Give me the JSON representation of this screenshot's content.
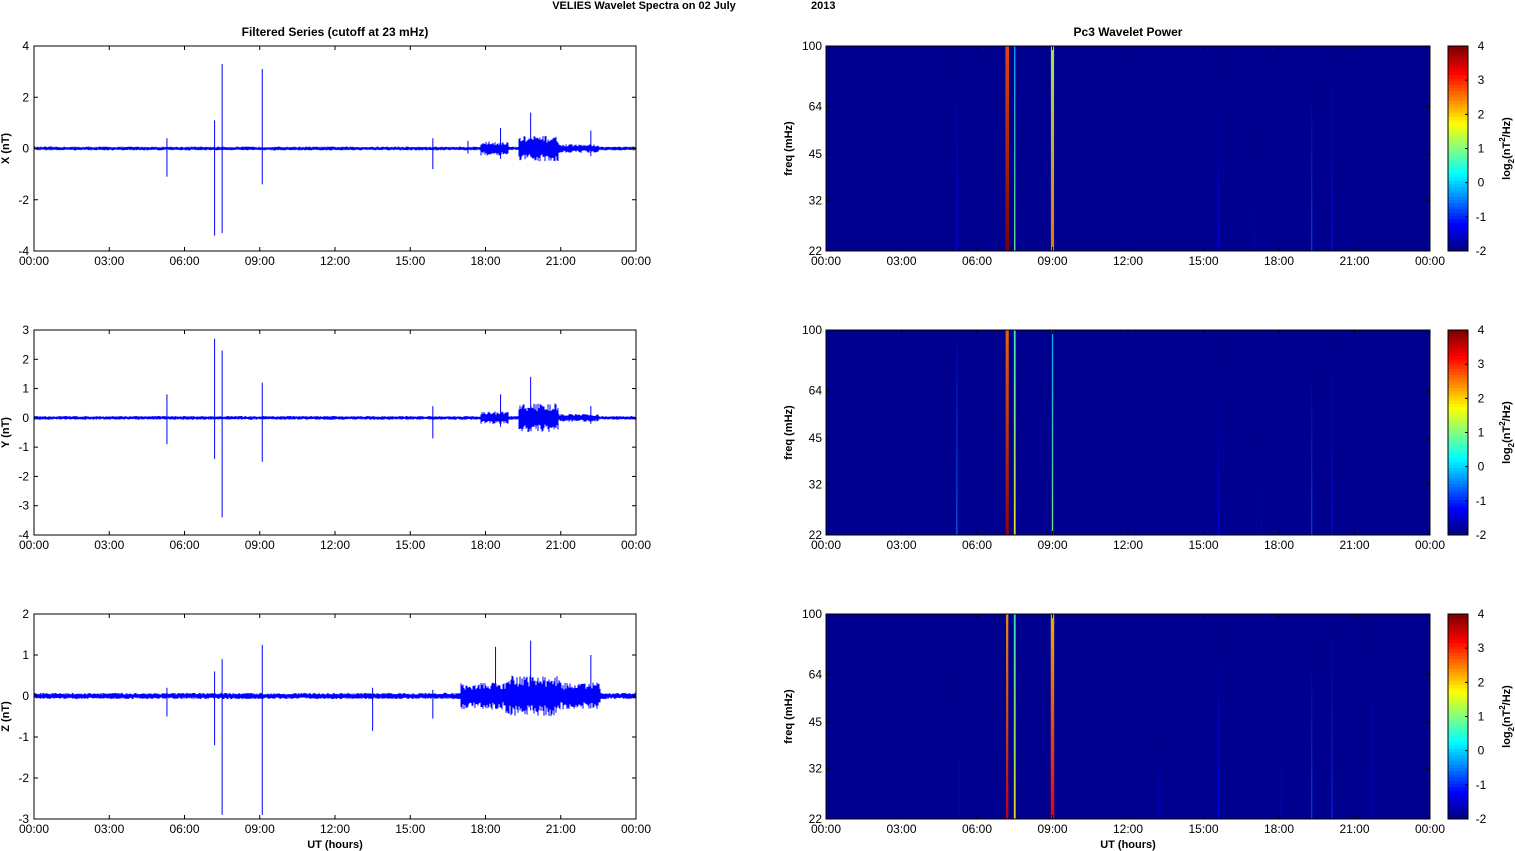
{
  "figure": {
    "suptitle": "VELIES Wavelet Spectra on 02 July",
    "suptitle_year": "2013"
  },
  "colors": {
    "trace": "#0000ff",
    "spectrum_background": "#00008f",
    "axis": "#000000"
  },
  "chart_data": [
    {
      "type": "line",
      "title": "Filtered Series (cutoff at 23 mHz)",
      "ylabel": "X (nT)",
      "xlabel": "",
      "xlim": [
        0,
        24
      ],
      "ylim": [
        -4,
        4
      ],
      "xticks": [
        "00:00",
        "03:00",
        "06:00",
        "09:00",
        "12:00",
        "15:00",
        "18:00",
        "21:00",
        "00:00"
      ],
      "yticks": [
        "4",
        "2",
        "0",
        "-2",
        "-4"
      ],
      "baseline_noise": 0.07,
      "active_intervals": [
        [
          17.8,
          18.9,
          0.25
        ],
        [
          19.3,
          20.9,
          0.45
        ],
        [
          20.9,
          22.5,
          0.15
        ]
      ],
      "spikes": [
        [
          5.3,
          0.4,
          -1.1
        ],
        [
          7.2,
          1.1,
          -3.4
        ],
        [
          7.5,
          3.3,
          -3.3
        ],
        [
          9.1,
          3.1,
          -1.4
        ],
        [
          15.9,
          0.4,
          -0.8
        ],
        [
          17.3,
          0.3,
          -0.2
        ],
        [
          18.6,
          0.8,
          -0.4
        ],
        [
          19.8,
          1.4,
          -0.3
        ],
        [
          22.2,
          0.7,
          -0.3
        ]
      ]
    },
    {
      "type": "line",
      "title": "",
      "ylabel": "Y (nT)",
      "xlabel": "",
      "xlim": [
        0,
        24
      ],
      "ylim": [
        -4,
        3
      ],
      "xticks": [
        "00:00",
        "03:00",
        "06:00",
        "09:00",
        "12:00",
        "15:00",
        "18:00",
        "21:00",
        "00:00"
      ],
      "yticks": [
        "3",
        "2",
        "1",
        "0",
        "-1",
        "-2",
        "-3",
        "-4"
      ],
      "baseline_noise": 0.06,
      "active_intervals": [
        [
          17.8,
          18.9,
          0.2
        ],
        [
          19.3,
          20.9,
          0.45
        ],
        [
          20.9,
          22.5,
          0.12
        ]
      ],
      "spikes": [
        [
          5.3,
          0.8,
          -0.9
        ],
        [
          7.2,
          2.7,
          -1.4
        ],
        [
          7.5,
          2.3,
          -3.4
        ],
        [
          9.1,
          1.2,
          -1.5
        ],
        [
          15.9,
          0.4,
          -0.7
        ],
        [
          18.6,
          0.8,
          -0.3
        ],
        [
          19.8,
          1.4,
          -0.3
        ],
        [
          22.2,
          0.4,
          -0.2
        ]
      ]
    },
    {
      "type": "line",
      "title": "",
      "ylabel": "Z (nT)",
      "xlabel": "UT (hours)",
      "xlim": [
        0,
        24
      ],
      "ylim": [
        -3,
        2
      ],
      "xticks": [
        "00:00",
        "03:00",
        "06:00",
        "09:00",
        "12:00",
        "15:00",
        "18:00",
        "21:00",
        "00:00"
      ],
      "yticks": [
        "2",
        "1",
        "0",
        "-1",
        "-2",
        "-3"
      ],
      "baseline_noise": 0.07,
      "active_intervals": [
        [
          17.0,
          18.8,
          0.3
        ],
        [
          18.8,
          21.0,
          0.45
        ],
        [
          21.0,
          22.6,
          0.3
        ]
      ],
      "spikes": [
        [
          5.3,
          0.2,
          -0.5
        ],
        [
          7.2,
          0.6,
          -1.2
        ],
        [
          7.5,
          0.9,
          -2.9
        ],
        [
          9.1,
          1.25,
          -2.9
        ],
        [
          13.5,
          0.2,
          -0.85
        ],
        [
          15.9,
          0.15,
          -0.55
        ],
        [
          18.4,
          1.2,
          -0.3
        ],
        [
          19.8,
          1.35,
          -0.35
        ],
        [
          22.2,
          1.0,
          -0.3
        ]
      ]
    },
    {
      "type": "heatmap",
      "title": "Pc3 Wavelet Power",
      "ylabel": "freq (mHz)",
      "xlabel": "",
      "xlim": [
        0,
        24
      ],
      "ylim": [
        22,
        100
      ],
      "scale_y": "log",
      "xticks": [
        "00:00",
        "03:00",
        "06:00",
        "09:00",
        "12:00",
        "15:00",
        "18:00",
        "21:00",
        "00:00"
      ],
      "yticks": [
        100,
        64,
        45,
        32,
        22
      ],
      "colorbar": {
        "label_base": "log",
        "label_sub": "2",
        "label_rest": "(nT",
        "label_sup": "2",
        "label_end": "/Hz)",
        "ticks": [
          "4",
          "3",
          "2",
          "1",
          "0",
          "-1",
          "-2"
        ],
        "range": [
          -2,
          4
        ]
      },
      "features": [
        [
          5.2,
          0.5,
          90,
          -1.2
        ],
        [
          7.2,
          4.0,
          100,
          4.0
        ],
        [
          7.5,
          1.5,
          100,
          1.0
        ],
        [
          9.0,
          3.5,
          100,
          2.5
        ],
        [
          15.6,
          0.3,
          90,
          -1.4
        ],
        [
          17.0,
          0.2,
          50,
          -1.6
        ],
        [
          19.3,
          0.8,
          75,
          -0.8
        ],
        [
          20.1,
          0.3,
          100,
          -1.2
        ]
      ]
    },
    {
      "type": "heatmap",
      "title": "",
      "ylabel": "freq (mHz)",
      "xlabel": "",
      "xlim": [
        0,
        24
      ],
      "ylim": [
        22,
        100
      ],
      "scale_y": "log",
      "xticks": [
        "00:00",
        "03:00",
        "06:00",
        "09:00",
        "12:00",
        "15:00",
        "18:00",
        "21:00",
        "00:00"
      ],
      "yticks": [
        100,
        64,
        45,
        32,
        22
      ],
      "colorbar": {
        "label_base": "log",
        "label_sub": "2",
        "label_rest": "(nT",
        "label_sup": "2",
        "label_end": "/Hz)",
        "ticks": [
          "4",
          "3",
          "2",
          "1",
          "0",
          "-1",
          "-2"
        ],
        "range": [
          -2,
          4
        ]
      },
      "features": [
        [
          5.2,
          0.8,
          95,
          -0.6
        ],
        [
          7.2,
          3.5,
          100,
          3.8
        ],
        [
          7.5,
          2.0,
          100,
          1.8
        ],
        [
          9.0,
          1.5,
          100,
          1.0
        ],
        [
          15.6,
          0.3,
          90,
          -1.4
        ],
        [
          17.3,
          0.2,
          45,
          -1.6
        ],
        [
          19.3,
          0.7,
          75,
          -0.8
        ],
        [
          20.1,
          0.3,
          100,
          -1.2
        ]
      ]
    },
    {
      "type": "heatmap",
      "title": "",
      "ylabel": "freq (mHz)",
      "xlabel": "UT (hours)",
      "xlim": [
        0,
        24
      ],
      "ylim": [
        22,
        100
      ],
      "scale_y": "log",
      "xticks": [
        "00:00",
        "03:00",
        "06:00",
        "09:00",
        "12:00",
        "15:00",
        "18:00",
        "21:00",
        "00:00"
      ],
      "yticks": [
        100,
        64,
        45,
        32,
        22
      ],
      "colorbar": {
        "label_base": "log",
        "label_sub": "2",
        "label_rest": "(nT",
        "label_sup": "2",
        "label_end": "/Hz)",
        "ticks": [
          "4",
          "3",
          "2",
          "1",
          "0",
          "-1",
          "-2"
        ],
        "range": [
          -2,
          4
        ]
      },
      "features": [
        [
          5.3,
          0.2,
          60,
          -1.6
        ],
        [
          7.2,
          2.5,
          100,
          3.5
        ],
        [
          7.5,
          2.0,
          100,
          1.8
        ],
        [
          9.0,
          3.8,
          100,
          3.3
        ],
        [
          13.2,
          0.3,
          40,
          -1.4
        ],
        [
          15.6,
          0.4,
          90,
          -1.2
        ],
        [
          18.1,
          0.3,
          40,
          -1.4
        ],
        [
          19.3,
          0.8,
          75,
          -0.8
        ],
        [
          20.1,
          0.4,
          100,
          -1.0
        ],
        [
          21.7,
          0.2,
          100,
          -1.5
        ]
      ]
    }
  ]
}
